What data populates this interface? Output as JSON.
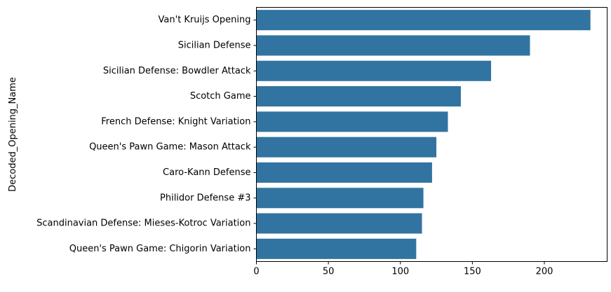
{
  "chart_data": {
    "type": "bar",
    "orientation": "horizontal",
    "categories": [
      "Van't Kruijs Opening",
      "Sicilian Defense",
      "Sicilian Defense: Bowdler Attack",
      "Scotch Game",
      "French Defense: Knight Variation",
      "Queen's Pawn Game: Mason Attack",
      "Caro-Kann Defense",
      "Philidor Defense #3",
      "Scandinavian Defense: Mieses-Kotroc Variation",
      "Queen's Pawn Game: Chigorin Variation"
    ],
    "values": [
      232,
      190,
      163,
      142,
      133,
      125,
      122,
      116,
      115,
      111
    ],
    "title": "",
    "xlabel": "",
    "ylabel": "Decoded_Opening_Name",
    "xlim": [
      0,
      243.6
    ],
    "xticks": [
      0,
      50,
      100,
      150,
      200
    ],
    "grid": false,
    "legend": "none",
    "colors": {
      "bar": "#3274a1",
      "axis": "#000000",
      "text": "#000000"
    }
  }
}
